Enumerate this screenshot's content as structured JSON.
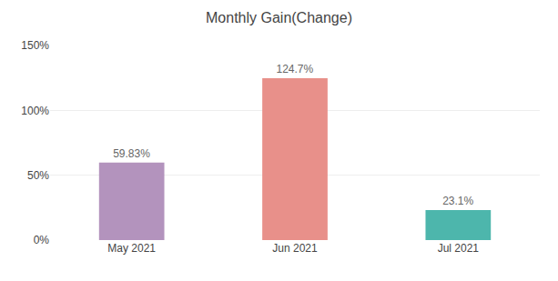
{
  "chart_data": {
    "type": "bar",
    "title": "Monthly Gain(Change)",
    "categories": [
      "May 2021",
      "Jun 2021",
      "Jul 2021"
    ],
    "values": [
      59.83,
      124.7,
      23.1
    ],
    "value_labels": [
      "59.83%",
      "124.7%",
      "23.1%"
    ],
    "colors": [
      "#b393bd",
      "#e8908a",
      "#4db6ac"
    ],
    "ylim": [
      0,
      150
    ],
    "yticks": [
      {
        "value": 0,
        "label": "0%"
      },
      {
        "value": 50,
        "label": "50%"
      },
      {
        "value": 100,
        "label": "100%"
      },
      {
        "value": 150,
        "label": "150%"
      }
    ],
    "grid": true,
    "data_labels": true
  }
}
